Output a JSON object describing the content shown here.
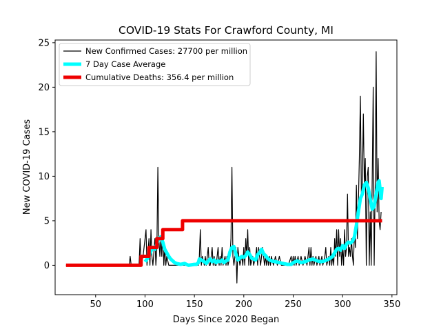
{
  "chart_data": {
    "type": "line",
    "title": "COVID-19 Stats For Crawford County, MI",
    "xlabel": "Days Since 2020 Began",
    "ylabel": "New COVID-19 Cases",
    "xlim": [
      9,
      355
    ],
    "ylim": [
      -3.3,
      25.3
    ],
    "xticks": [
      50,
      100,
      150,
      200,
      250,
      300,
      350
    ],
    "yticks": [
      0,
      5,
      10,
      15,
      20,
      25
    ],
    "grid": false,
    "legend_position": "top-left",
    "series": [
      {
        "name": "New Confirmed Cases: 27700 per million",
        "color": "#000000",
        "points": [
          [
            20,
            0
          ],
          [
            30,
            0
          ],
          [
            40,
            0
          ],
          [
            50,
            0
          ],
          [
            60,
            0
          ],
          [
            70,
            0
          ],
          [
            80,
            0
          ],
          [
            84,
            0
          ],
          [
            85,
            1
          ],
          [
            86,
            0
          ],
          [
            90,
            0
          ],
          [
            94,
            0
          ],
          [
            95,
            3
          ],
          [
            96,
            0
          ],
          [
            98,
            1
          ],
          [
            100,
            3
          ],
          [
            101,
            4
          ],
          [
            102,
            0
          ],
          [
            104,
            3
          ],
          [
            105,
            0
          ],
          [
            106,
            4
          ],
          [
            107,
            1
          ],
          [
            108,
            0
          ],
          [
            110,
            3
          ],
          [
            111,
            0
          ],
          [
            112,
            2
          ],
          [
            113,
            11
          ],
          [
            114,
            3
          ],
          [
            115,
            1
          ],
          [
            116,
            3
          ],
          [
            117,
            1
          ],
          [
            118,
            4
          ],
          [
            119,
            0
          ],
          [
            120,
            2
          ],
          [
            121,
            0
          ],
          [
            122,
            1
          ],
          [
            124,
            0
          ],
          [
            130,
            0
          ],
          [
            135,
            0
          ],
          [
            140,
            0
          ],
          [
            150,
            0
          ],
          [
            154,
            0
          ],
          [
            155,
            1
          ],
          [
            156,
            4
          ],
          [
            157,
            0
          ],
          [
            158,
            1
          ],
          [
            160,
            0
          ],
          [
            161,
            1
          ],
          [
            162,
            0
          ],
          [
            164,
            2
          ],
          [
            165,
            0
          ],
          [
            166,
            0
          ],
          [
            168,
            2
          ],
          [
            169,
            0
          ],
          [
            170,
            1
          ],
          [
            171,
            0
          ],
          [
            172,
            0
          ],
          [
            174,
            2
          ],
          [
            175,
            0
          ],
          [
            176,
            1
          ],
          [
            177,
            0
          ],
          [
            178,
            2
          ],
          [
            179,
            0
          ],
          [
            181,
            1
          ],
          [
            182,
            0
          ],
          [
            183,
            1
          ],
          [
            184,
            0
          ],
          [
            186,
            1
          ],
          [
            187,
            3
          ],
          [
            188,
            11
          ],
          [
            189,
            1
          ],
          [
            190,
            0
          ],
          [
            191,
            1
          ],
          [
            192,
            2
          ],
          [
            193,
            -2
          ],
          [
            194,
            2
          ],
          [
            195,
            1
          ],
          [
            196,
            0
          ],
          [
            198,
            1
          ],
          [
            199,
            0
          ],
          [
            200,
            2
          ],
          [
            201,
            0
          ],
          [
            202,
            3
          ],
          [
            203,
            1
          ],
          [
            204,
            4
          ],
          [
            205,
            0
          ],
          [
            206,
            2
          ],
          [
            207,
            0
          ],
          [
            209,
            1
          ],
          [
            210,
            0
          ],
          [
            212,
            1
          ],
          [
            213,
            2
          ],
          [
            214,
            0
          ],
          [
            215,
            2
          ],
          [
            216,
            1
          ],
          [
            217,
            0
          ],
          [
            218,
            1
          ],
          [
            219,
            2
          ],
          [
            220,
            1
          ],
          [
            221,
            0
          ],
          [
            222,
            1
          ],
          [
            223,
            0
          ],
          [
            224,
            1
          ],
          [
            225,
            0
          ],
          [
            226,
            1
          ],
          [
            227,
            0
          ],
          [
            228,
            1
          ],
          [
            230,
            0
          ],
          [
            232,
            1
          ],
          [
            234,
            0
          ],
          [
            236,
            1
          ],
          [
            238,
            0
          ],
          [
            245,
            0
          ],
          [
            248,
            1
          ],
          [
            249,
            0
          ],
          [
            250,
            1
          ],
          [
            251,
            0
          ],
          [
            252,
            1
          ],
          [
            253,
            0
          ],
          [
            255,
            1
          ],
          [
            256,
            0
          ],
          [
            258,
            1
          ],
          [
            260,
            0
          ],
          [
            262,
            1
          ],
          [
            264,
            0
          ],
          [
            266,
            2
          ],
          [
            267,
            0
          ],
          [
            268,
            2
          ],
          [
            269,
            0
          ],
          [
            270,
            1
          ],
          [
            271,
            0
          ],
          [
            273,
            1
          ],
          [
            274,
            0
          ],
          [
            276,
            1
          ],
          [
            277,
            0
          ],
          [
            279,
            1
          ],
          [
            280,
            0
          ],
          [
            282,
            1
          ],
          [
            283,
            2
          ],
          [
            284,
            0
          ],
          [
            286,
            1
          ],
          [
            287,
            0
          ],
          [
            288,
            2
          ],
          [
            289,
            0
          ],
          [
            290,
            1
          ],
          [
            291,
            0
          ],
          [
            292,
            3
          ],
          [
            293,
            1
          ],
          [
            294,
            4
          ],
          [
            295,
            0
          ],
          [
            296,
            4
          ],
          [
            297,
            1
          ],
          [
            298,
            3
          ],
          [
            299,
            0
          ],
          [
            300,
            2
          ],
          [
            301,
            0
          ],
          [
            302,
            4
          ],
          [
            303,
            1
          ],
          [
            304,
            2
          ],
          [
            305,
            8
          ],
          [
            306,
            1
          ],
          [
            307,
            2
          ],
          [
            308,
            1
          ],
          [
            309,
            3
          ],
          [
            310,
            1
          ],
          [
            311,
            0
          ],
          [
            312,
            4
          ],
          [
            313,
            2
          ],
          [
            314,
            9
          ],
          [
            315,
            3
          ],
          [
            316,
            7
          ],
          [
            317,
            12
          ],
          [
            318,
            19
          ],
          [
            319,
            8
          ],
          [
            320,
            9
          ],
          [
            321,
            17
          ],
          [
            322,
            9
          ],
          [
            323,
            12
          ],
          [
            324,
            0
          ],
          [
            325,
            10
          ],
          [
            326,
            11
          ],
          [
            327,
            0
          ],
          [
            328,
            6
          ],
          [
            329,
            0
          ],
          [
            330,
            10
          ],
          [
            331,
            20
          ],
          [
            332,
            0
          ],
          [
            333,
            9
          ],
          [
            334,
            24
          ],
          [
            335,
            6
          ],
          [
            336,
            12
          ],
          [
            337,
            5
          ],
          [
            338,
            4
          ],
          [
            339,
            6
          ]
        ]
      },
      {
        "name": "7 Day Case Average",
        "color": "#00ffff",
        "points": [
          [
            100,
            0.4
          ],
          [
            104,
            1.0
          ],
          [
            106,
            1.6
          ],
          [
            108,
            2.0
          ],
          [
            110,
            1.8
          ],
          [
            112,
            2.4
          ],
          [
            114,
            3.0
          ],
          [
            116,
            3.2
          ],
          [
            118,
            2.6
          ],
          [
            120,
            1.8
          ],
          [
            122,
            1.4
          ],
          [
            124,
            1.0
          ],
          [
            126,
            0.7
          ],
          [
            128,
            0.5
          ],
          [
            130,
            0.3
          ],
          [
            132,
            0.2
          ],
          [
            136,
            0.1
          ],
          [
            140,
            0.2
          ],
          [
            144,
            0.0
          ],
          [
            150,
            0.1
          ],
          [
            152,
            0.1
          ],
          [
            154,
            0.3
          ],
          [
            155,
            0.7
          ],
          [
            157,
            0.6
          ],
          [
            160,
            0.4
          ],
          [
            162,
            0.2
          ],
          [
            164,
            0.5
          ],
          [
            166,
            0.7
          ],
          [
            168,
            0.4
          ],
          [
            170,
            0.6
          ],
          [
            172,
            0.3
          ],
          [
            174,
            0.5
          ],
          [
            176,
            0.4
          ],
          [
            178,
            0.6
          ],
          [
            180,
            0.3
          ],
          [
            182,
            0.5
          ],
          [
            184,
            0.6
          ],
          [
            186,
            1.5
          ],
          [
            188,
            2.0
          ],
          [
            190,
            2.1
          ],
          [
            192,
            1.3
          ],
          [
            194,
            0.6
          ],
          [
            196,
            0.8
          ],
          [
            198,
            1.0
          ],
          [
            200,
            0.9
          ],
          [
            202,
            1.1
          ],
          [
            204,
            1.5
          ],
          [
            206,
            1.2
          ],
          [
            208,
            0.8
          ],
          [
            210,
            0.7
          ],
          [
            212,
            0.6
          ],
          [
            214,
            1.2
          ],
          [
            216,
            1.4
          ],
          [
            218,
            1.8
          ],
          [
            220,
            1.3
          ],
          [
            222,
            1.1
          ],
          [
            224,
            0.8
          ],
          [
            226,
            0.6
          ],
          [
            228,
            0.5
          ],
          [
            232,
            0.4
          ],
          [
            236,
            0.3
          ],
          [
            240,
            0.2
          ],
          [
            244,
            0.1
          ],
          [
            248,
            0.1
          ],
          [
            250,
            0.3
          ],
          [
            254,
            0.5
          ],
          [
            258,
            0.3
          ],
          [
            262,
            0.4
          ],
          [
            266,
            0.6
          ],
          [
            270,
            0.7
          ],
          [
            274,
            0.5
          ],
          [
            278,
            0.4
          ],
          [
            282,
            0.5
          ],
          [
            286,
            0.7
          ],
          [
            290,
            1.0
          ],
          [
            292,
            1.4
          ],
          [
            294,
            1.8
          ],
          [
            296,
            1.9
          ],
          [
            298,
            1.7
          ],
          [
            300,
            2.2
          ],
          [
            302,
            1.9
          ],
          [
            304,
            2.4
          ],
          [
            306,
            2.6
          ],
          [
            308,
            2.5
          ],
          [
            310,
            2.7
          ],
          [
            312,
            3.2
          ],
          [
            314,
            4.5
          ],
          [
            316,
            6.0
          ],
          [
            318,
            7.5
          ],
          [
            320,
            8.0
          ],
          [
            322,
            9.0
          ],
          [
            324,
            9.3
          ],
          [
            326,
            8.7
          ],
          [
            328,
            7.5
          ],
          [
            330,
            6.3
          ],
          [
            332,
            6.6
          ],
          [
            334,
            8.0
          ],
          [
            336,
            9.3
          ],
          [
            337,
            9.5
          ],
          [
            338,
            8.5
          ],
          [
            339,
            7.5
          ],
          [
            340,
            8.8
          ]
        ]
      },
      {
        "name": "Cumulative Deaths: 356.4 per million",
        "color": "#ee0000",
        "points": [
          [
            20,
            0
          ],
          [
            96,
            0
          ],
          [
            96,
            1
          ],
          [
            104,
            1
          ],
          [
            104,
            2
          ],
          [
            112,
            2
          ],
          [
            112,
            3
          ],
          [
            118,
            3
          ],
          [
            118,
            4
          ],
          [
            138,
            4
          ],
          [
            138,
            5
          ],
          [
            340,
            5
          ]
        ]
      }
    ]
  }
}
